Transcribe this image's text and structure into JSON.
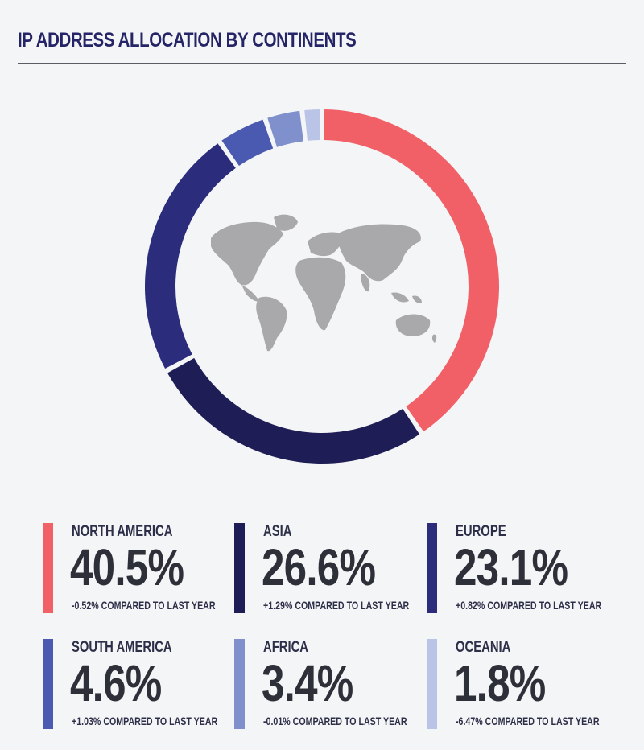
{
  "title": "IP ADDRESS ALLOCATION BY CONTINENTS",
  "chart_data": {
    "type": "pie",
    "style": "donut",
    "center_graphic": "world-map",
    "categories": [
      "NORTH AMERICA",
      "ASIA",
      "EUROPE",
      "SOUTH AMERICA",
      "AFRICA",
      "OCEANIA"
    ],
    "values": [
      40.5,
      26.6,
      23.1,
      4.6,
      3.4,
      1.8
    ],
    "labels": [
      "40.5%",
      "26.6%",
      "23.1%",
      "4.6%",
      "3.4%",
      "1.8%"
    ],
    "changes": [
      "-0.52% COMPARED TO LAST YEAR",
      "+1.29% COMPARED TO LAST YEAR",
      "+0.82% COMPARED TO LAST YEAR",
      "+1.03% COMPARED TO LAST YEAR",
      "-0.01% COMPARED TO LAST YEAR",
      "-6.47% COMPARED TO LAST YEAR"
    ],
    "colors": [
      "#f06066",
      "#1f1d55",
      "#2c2c7c",
      "#4a5ab0",
      "#8090cd",
      "#b9c4e6"
    ]
  },
  "colors": {
    "background": "#f4f5f7",
    "map": "#a9a9ab",
    "title": "#252466"
  }
}
